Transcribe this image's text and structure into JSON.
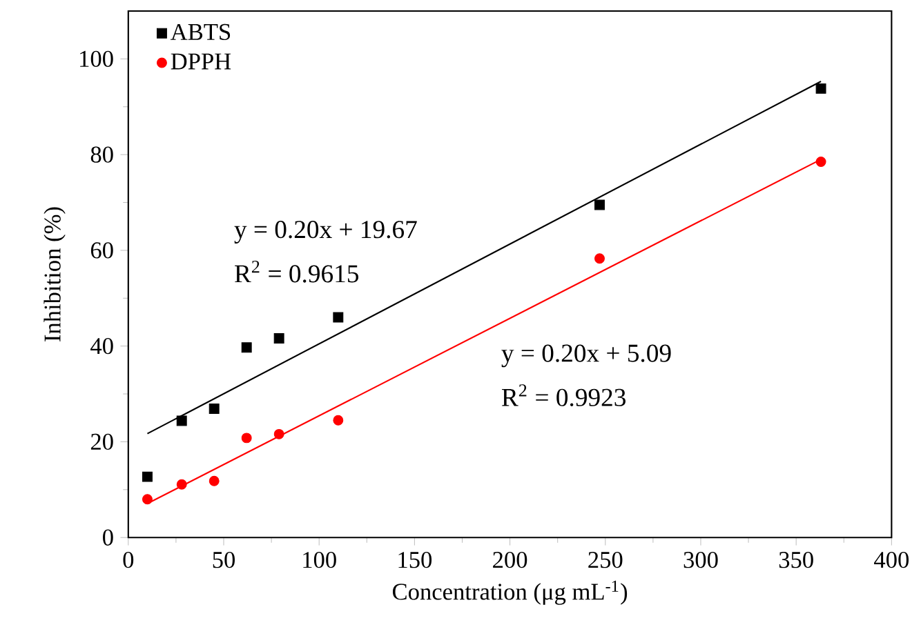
{
  "chart_data": {
    "type": "scatter",
    "xlabel": "Concentration (μg mL$^{-1}$)",
    "ylabel": "Inhibition (%)",
    "xlim": [
      0,
      400
    ],
    "ylim": [
      0,
      110
    ],
    "xticks": [
      0,
      50,
      100,
      150,
      200,
      250,
      300,
      350,
      400
    ],
    "yticks": [
      0,
      20,
      40,
      60,
      80,
      100
    ],
    "grid": false,
    "legend": "top left",
    "series": [
      {
        "name": "ABTS",
        "marker": "square",
        "color": "#000000",
        "x": [
          10,
          28,
          45,
          62,
          79,
          110,
          247,
          363
        ],
        "values": [
          12.7,
          24.4,
          26.9,
          39.7,
          41.6,
          46.0,
          69.5,
          93.8
        ]
      },
      {
        "name": "DPPH",
        "marker": "circle",
        "color": "#ff0000",
        "x": [
          10,
          28,
          45,
          62,
          79,
          110,
          247,
          363
        ],
        "values": [
          8.0,
          11.1,
          11.8,
          20.8,
          21.6,
          24.5,
          58.3,
          78.5
        ]
      },
      {
        "type": "line",
        "marker": "none",
        "color": "#000000",
        "x": [
          10,
          363
        ],
        "values": [
          21.7,
          95.3
        ]
      },
      {
        "type": "line",
        "marker": "none",
        "color": "#ff0000",
        "x": [
          10,
          363
        ],
        "values": [
          7.1,
          79.0
        ]
      }
    ],
    "annotations": [
      "y = 0.20x + 19.67",
      "R$^{2}$ = 0.9615",
      "y = 0.20x + 5.09",
      "R$^{2}$ = 0.9923"
    ]
  }
}
